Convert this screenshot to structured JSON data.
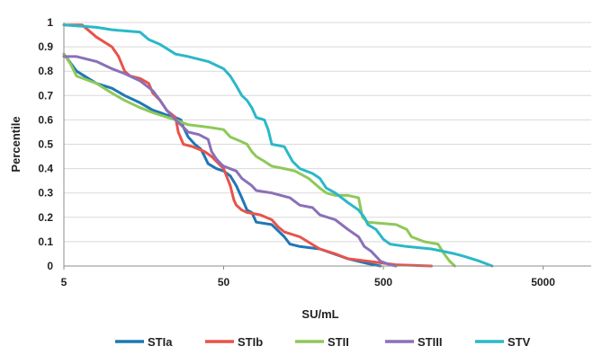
{
  "chart_data": {
    "type": "line",
    "xlabel": "SU/mL",
    "ylabel": "Percentile",
    "xscale": "log",
    "xlim": [
      5,
      10000
    ],
    "ylim": [
      0,
      1
    ],
    "x_ticks": [
      5,
      50,
      500,
      5000
    ],
    "x_tick_labels": [
      "5",
      "50",
      "500",
      "5000"
    ],
    "y_ticks": [
      0,
      0.1,
      0.2,
      0.3,
      0.4,
      0.5,
      0.6,
      0.7,
      0.8,
      0.9,
      1
    ],
    "y_tick_labels": [
      "0",
      "0.1",
      "0.2",
      "0.3",
      "0.4",
      "0.5",
      "0.6",
      "0.7",
      "0.8",
      "0.9",
      "1"
    ],
    "grid": "horizontal",
    "legend_position": "bottom",
    "series": [
      {
        "name": "STIa",
        "color": "#1f77b4",
        "points": [
          [
            5,
            0.87
          ],
          [
            6,
            0.8
          ],
          [
            8,
            0.75
          ],
          [
            10,
            0.73
          ],
          [
            12,
            0.7
          ],
          [
            15,
            0.67
          ],
          [
            18,
            0.64
          ],
          [
            20,
            0.63
          ],
          [
            22,
            0.62
          ],
          [
            25,
            0.61
          ],
          [
            27,
            0.6
          ],
          [
            28,
            0.57
          ],
          [
            30,
            0.53
          ],
          [
            33,
            0.5
          ],
          [
            36,
            0.48
          ],
          [
            38,
            0.45
          ],
          [
            40,
            0.42
          ],
          [
            45,
            0.4
          ],
          [
            50,
            0.39
          ],
          [
            55,
            0.37
          ],
          [
            60,
            0.33
          ],
          [
            65,
            0.28
          ],
          [
            70,
            0.23
          ],
          [
            75,
            0.22
          ],
          [
            80,
            0.18
          ],
          [
            100,
            0.17
          ],
          [
            120,
            0.12
          ],
          [
            130,
            0.09
          ],
          [
            150,
            0.08
          ],
          [
            200,
            0.07
          ],
          [
            300,
            0.03
          ],
          [
            400,
            0.01
          ],
          [
            480,
            0.0
          ]
        ]
      },
      {
        "name": "STIb",
        "color": "#e8534a",
        "points": [
          [
            5,
            0.99
          ],
          [
            6.5,
            0.99
          ],
          [
            8,
            0.94
          ],
          [
            10,
            0.9
          ],
          [
            11,
            0.86
          ],
          [
            12,
            0.8
          ],
          [
            13,
            0.78
          ],
          [
            15,
            0.77
          ],
          [
            17,
            0.75
          ],
          [
            18,
            0.71
          ],
          [
            20,
            0.68
          ],
          [
            22,
            0.64
          ],
          [
            25,
            0.61
          ],
          [
            26,
            0.55
          ],
          [
            28,
            0.5
          ],
          [
            32,
            0.49
          ],
          [
            38,
            0.47
          ],
          [
            42,
            0.45
          ],
          [
            45,
            0.43
          ],
          [
            50,
            0.4
          ],
          [
            55,
            0.33
          ],
          [
            58,
            0.27
          ],
          [
            60,
            0.25
          ],
          [
            65,
            0.23
          ],
          [
            70,
            0.22
          ],
          [
            85,
            0.21
          ],
          [
            100,
            0.19
          ],
          [
            110,
            0.16
          ],
          [
            120,
            0.14
          ],
          [
            150,
            0.12
          ],
          [
            200,
            0.07
          ],
          [
            250,
            0.05
          ],
          [
            300,
            0.03
          ],
          [
            400,
            0.02
          ],
          [
            600,
            0.005
          ],
          [
            1000,
            0.0
          ]
        ]
      },
      {
        "name": "STII",
        "color": "#8fc85a",
        "points": [
          [
            5,
            0.87
          ],
          [
            5.5,
            0.83
          ],
          [
            6,
            0.78
          ],
          [
            8,
            0.75
          ],
          [
            10,
            0.71
          ],
          [
            12,
            0.68
          ],
          [
            15,
            0.65
          ],
          [
            18,
            0.63
          ],
          [
            20,
            0.62
          ],
          [
            25,
            0.6
          ],
          [
            30,
            0.58
          ],
          [
            40,
            0.57
          ],
          [
            50,
            0.56
          ],
          [
            55,
            0.53
          ],
          [
            65,
            0.51
          ],
          [
            70,
            0.5
          ],
          [
            75,
            0.47
          ],
          [
            80,
            0.45
          ],
          [
            90,
            0.43
          ],
          [
            100,
            0.41
          ],
          [
            120,
            0.4
          ],
          [
            140,
            0.39
          ],
          [
            170,
            0.36
          ],
          [
            200,
            0.32
          ],
          [
            220,
            0.3
          ],
          [
            250,
            0.29
          ],
          [
            300,
            0.29
          ],
          [
            350,
            0.28
          ],
          [
            370,
            0.2
          ],
          [
            400,
            0.18
          ],
          [
            600,
            0.17
          ],
          [
            700,
            0.15
          ],
          [
            750,
            0.12
          ],
          [
            900,
            0.1
          ],
          [
            1100,
            0.09
          ],
          [
            1200,
            0.05
          ],
          [
            1300,
            0.02
          ],
          [
            1400,
            0.0
          ]
        ]
      },
      {
        "name": "STIII",
        "color": "#8a70b8",
        "points": [
          [
            5,
            0.86
          ],
          [
            6,
            0.86
          ],
          [
            8,
            0.84
          ],
          [
            10,
            0.81
          ],
          [
            12,
            0.79
          ],
          [
            15,
            0.76
          ],
          [
            18,
            0.72
          ],
          [
            20,
            0.68
          ],
          [
            22,
            0.64
          ],
          [
            25,
            0.6
          ],
          [
            28,
            0.57
          ],
          [
            30,
            0.55
          ],
          [
            35,
            0.54
          ],
          [
            40,
            0.52
          ],
          [
            42,
            0.47
          ],
          [
            45,
            0.44
          ],
          [
            48,
            0.42
          ],
          [
            50,
            0.41
          ],
          [
            60,
            0.39
          ],
          [
            65,
            0.36
          ],
          [
            75,
            0.33
          ],
          [
            80,
            0.31
          ],
          [
            100,
            0.3
          ],
          [
            130,
            0.28
          ],
          [
            150,
            0.25
          ],
          [
            180,
            0.24
          ],
          [
            200,
            0.21
          ],
          [
            250,
            0.19
          ],
          [
            300,
            0.15
          ],
          [
            350,
            0.12
          ],
          [
            380,
            0.08
          ],
          [
            420,
            0.06
          ],
          [
            480,
            0.02
          ],
          [
            550,
            0.005
          ],
          [
            600,
            0.0
          ]
        ]
      },
      {
        "name": "STV",
        "color": "#2ab8c8",
        "points": [
          [
            5,
            0.99
          ],
          [
            8,
            0.98
          ],
          [
            10,
            0.97
          ],
          [
            15,
            0.96
          ],
          [
            17,
            0.93
          ],
          [
            20,
            0.91
          ],
          [
            25,
            0.87
          ],
          [
            30,
            0.86
          ],
          [
            40,
            0.84
          ],
          [
            50,
            0.81
          ],
          [
            55,
            0.78
          ],
          [
            60,
            0.74
          ],
          [
            65,
            0.7
          ],
          [
            70,
            0.68
          ],
          [
            75,
            0.65
          ],
          [
            80,
            0.61
          ],
          [
            90,
            0.6
          ],
          [
            95,
            0.56
          ],
          [
            100,
            0.5
          ],
          [
            120,
            0.49
          ],
          [
            135,
            0.43
          ],
          [
            150,
            0.4
          ],
          [
            180,
            0.38
          ],
          [
            200,
            0.36
          ],
          [
            220,
            0.32
          ],
          [
            250,
            0.3
          ],
          [
            300,
            0.26
          ],
          [
            350,
            0.23
          ],
          [
            380,
            0.2
          ],
          [
            400,
            0.17
          ],
          [
            450,
            0.15
          ],
          [
            500,
            0.11
          ],
          [
            550,
            0.09
          ],
          [
            700,
            0.08
          ],
          [
            1000,
            0.07
          ],
          [
            1400,
            0.05
          ],
          [
            1600,
            0.04
          ],
          [
            2000,
            0.02
          ],
          [
            2400,
            0.0
          ]
        ]
      }
    ]
  }
}
